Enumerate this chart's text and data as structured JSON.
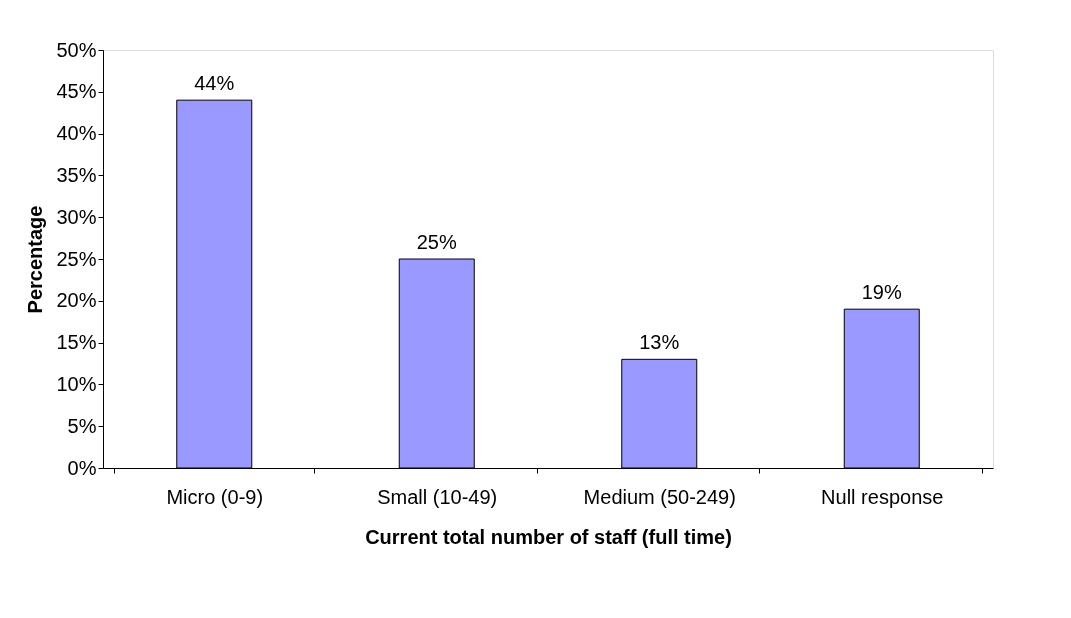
{
  "chart_data": {
    "type": "bar",
    "xlabel": "Current total number of staff (full time)",
    "ylabel": "Percentage",
    "categories": [
      "Micro (0-9)",
      "Small (10-49)",
      "Medium (50-249)",
      "Null response"
    ],
    "values": [
      44,
      25,
      13,
      19
    ],
    "color": "#9999ff",
    "value_labels": [
      "44%",
      "25%",
      "13%",
      "19%"
    ],
    "ylim": [
      0,
      50
    ],
    "yticks": [
      {
        "value": 0,
        "label": "0%"
      },
      {
        "value": 5,
        "label": "5%"
      },
      {
        "value": 10,
        "label": "10%"
      },
      {
        "value": 15,
        "label": "15%"
      },
      {
        "value": 20,
        "label": "20%"
      },
      {
        "value": 25,
        "label": "25%"
      },
      {
        "value": 30,
        "label": "30%"
      },
      {
        "value": 35,
        "label": "35%"
      },
      {
        "value": 40,
        "label": "40%"
      },
      {
        "value": 45,
        "label": "45%"
      },
      {
        "value": 50,
        "label": "50%"
      }
    ],
    "grid": false
  }
}
